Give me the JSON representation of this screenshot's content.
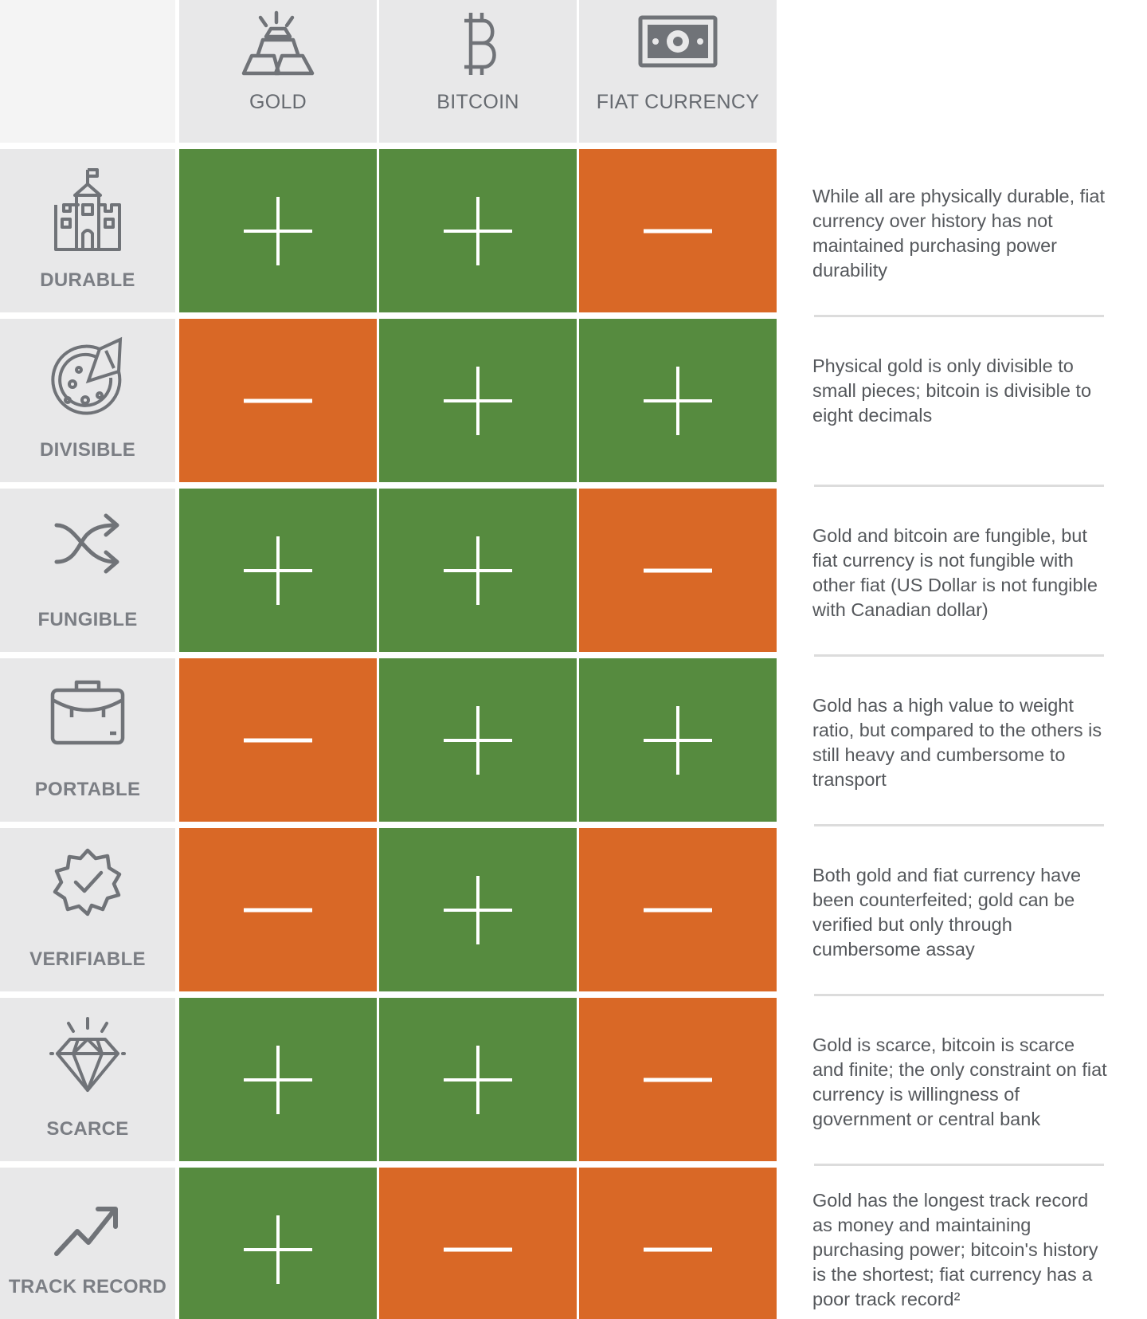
{
  "columns": [
    {
      "label": "GOLD",
      "icon": "gold-bars-icon"
    },
    {
      "label": "BITCOIN",
      "icon": "bitcoin-icon"
    },
    {
      "label": "FIAT CURRENCY",
      "icon": "banknote-icon"
    }
  ],
  "colors": {
    "positive": "#568b3f",
    "negative": "#d96826",
    "header": "#e8e8e9"
  },
  "rows": [
    {
      "label": "DURABLE",
      "icon": "castle-icon",
      "scores": [
        "+",
        "+",
        "-"
      ],
      "note": "While all are physically durable, fiat currency over history has not maintained purchasing power durability"
    },
    {
      "label": "DIVISIBLE",
      "icon": "pizza-icon",
      "scores": [
        "-",
        "+",
        "+"
      ],
      "note": "Physical gold is only divisible to small pieces; bitcoin is divisible to eight decimals"
    },
    {
      "label": "FUNGIBLE",
      "icon": "shuffle-icon",
      "scores": [
        "+",
        "+",
        "-"
      ],
      "note": "Gold and bitcoin are fungible, but fiat currency is not fungible with other fiat (US Dollar is not fungible with Canadian dollar)"
    },
    {
      "label": "PORTABLE",
      "icon": "briefcase-icon",
      "scores": [
        "-",
        "+",
        "+"
      ],
      "note": "Gold has a high value to weight ratio, but compared to the others is still heavy and cumbersome to transport"
    },
    {
      "label": "VERIFIABLE",
      "icon": "verified-badge-icon",
      "scores": [
        "-",
        "+",
        "-"
      ],
      "note": "Both gold and fiat currency have been counterfeited; gold can be verified but only through cumbersome assay"
    },
    {
      "label": "SCARCE",
      "icon": "diamond-icon",
      "scores": [
        "+",
        "+",
        "-"
      ],
      "note": "Gold is scarce, bitcoin is scarce and finite; the only constraint on fiat currency is willingness of government or central bank"
    },
    {
      "label": "TRACK RECORD",
      "icon": "trend-up-icon",
      "scores": [
        "+",
        "-",
        "-"
      ],
      "note": "Gold has the longest track record as money and maintaining purchasing power; bitcoin's history is the shortest; fiat currency has a poor track record²"
    }
  ]
}
